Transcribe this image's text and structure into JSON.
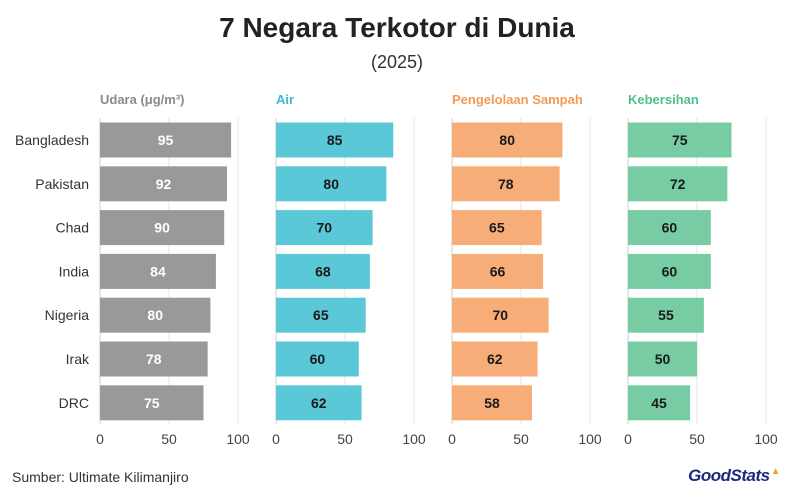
{
  "header": {
    "title": "7 Negara Terkotor di Dunia",
    "subtitle": "(2025)"
  },
  "footer": {
    "source": "Sumber: Ultimate Kilimanjiro",
    "logo_part1": "Good",
    "logo_part2": "Stats"
  },
  "chart_data": {
    "type": "bar",
    "orientation": "horizontal",
    "categories": [
      "Bangladesh",
      "Pakistan",
      "Chad",
      "India",
      "Nigeria",
      "Irak",
      "DRC"
    ],
    "xlim": [
      0,
      100
    ],
    "xticks": [
      0,
      50,
      100
    ],
    "grid": true,
    "series": [
      {
        "name": "Udara (μg/m³)",
        "values": [
          95,
          92,
          90,
          84,
          80,
          78,
          75
        ],
        "color": "#999999",
        "title_color": "#8a8a8a",
        "label_color": "#ffffff"
      },
      {
        "name": "Air",
        "values": [
          85,
          80,
          70,
          68,
          65,
          60,
          62
        ],
        "color": "#5ac8d6",
        "title_color": "#3bbcd0",
        "label_color": "#1a1a1a"
      },
      {
        "name": "Pengelolaan Sampah",
        "values": [
          80,
          78,
          65,
          66,
          70,
          62,
          58
        ],
        "color": "#f7ad78",
        "title_color": "#f39a55",
        "label_color": "#1a1a1a"
      },
      {
        "name": "Kebersihan",
        "values": [
          75,
          72,
          60,
          60,
          55,
          50,
          45
        ],
        "color": "#77cca4",
        "title_color": "#4fbf8c",
        "label_color": "#1a1a1a"
      }
    ]
  }
}
